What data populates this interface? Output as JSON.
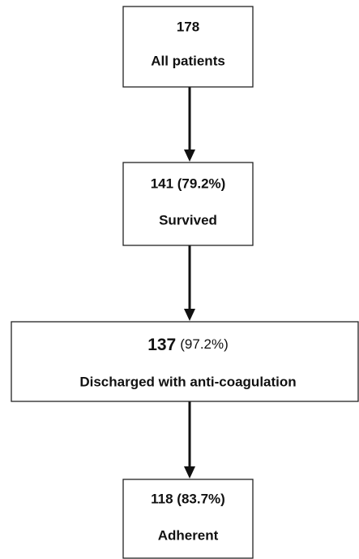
{
  "nodes": [
    {
      "count": "178",
      "label": "All patients"
    },
    {
      "count": "141 (79.2%)",
      "label": "Survived"
    },
    {
      "count": "137",
      "percent": "(97.2%)",
      "label": "Discharged with anti-coagulation"
    },
    {
      "count": "118 (83.7%)",
      "label": "Adherent"
    }
  ]
}
